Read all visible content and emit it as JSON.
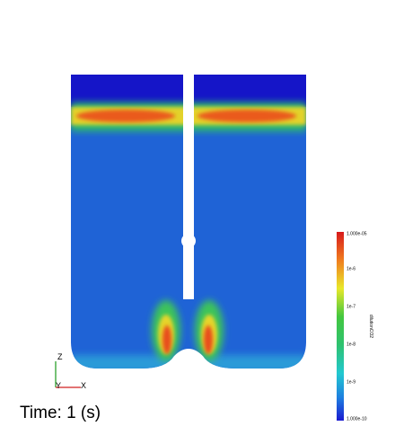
{
  "time_label": "Time: 1 (s)",
  "colorbar": {
    "title": "dilutionCO2",
    "labels": [
      "1.000e-05",
      "1e-6",
      "1e-7",
      "1e-8",
      "1e-9",
      "1.000e-10"
    ]
  },
  "axes": {
    "z": "Z",
    "y": "Y",
    "x": "X"
  }
}
